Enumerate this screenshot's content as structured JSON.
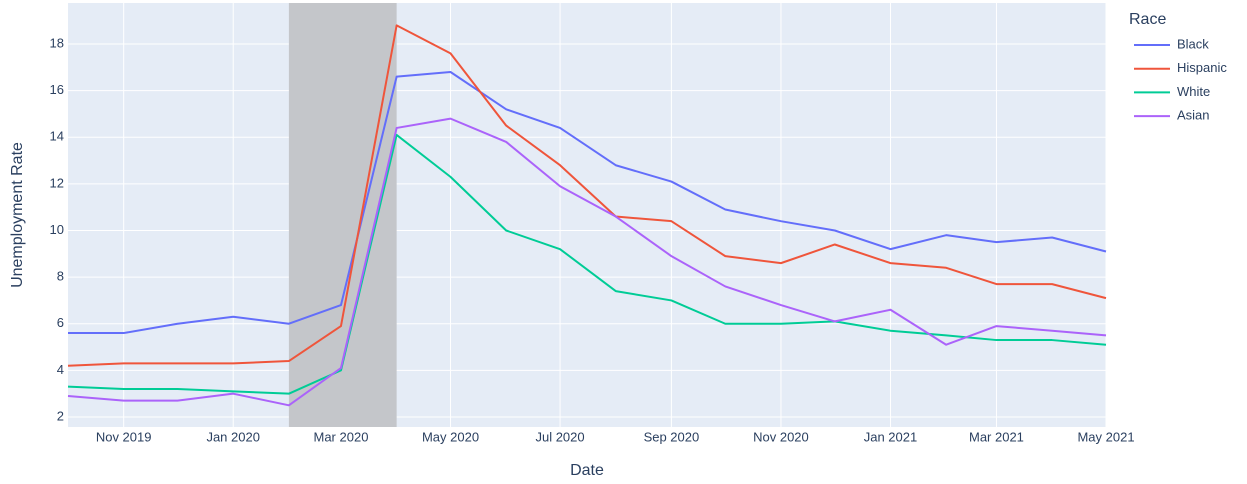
{
  "chart_data": {
    "type": "line",
    "x_label": "Date",
    "y_label": "Unemployment Rate",
    "legend_title": "Race",
    "legend_position": "right",
    "x": [
      "2019-10",
      "2019-11",
      "2019-12",
      "2020-01",
      "2020-02",
      "2020-03",
      "2020-04",
      "2020-05",
      "2020-06",
      "2020-07",
      "2020-08",
      "2020-09",
      "2020-10",
      "2020-11",
      "2020-12",
      "2021-01",
      "2021-02",
      "2021-03",
      "2021-04",
      "2021-05"
    ],
    "series": [
      {
        "name": "Black",
        "color": "#636efa",
        "values": [
          5.6,
          5.6,
          6.0,
          6.3,
          6.0,
          6.8,
          16.6,
          16.8,
          15.2,
          14.4,
          12.8,
          12.1,
          10.9,
          10.4,
          10.0,
          9.2,
          9.8,
          9.5,
          9.7,
          9.1
        ]
      },
      {
        "name": "Hispanic",
        "color": "#ef553b",
        "values": [
          4.2,
          4.3,
          4.3,
          4.3,
          4.4,
          5.9,
          18.8,
          17.6,
          14.5,
          12.8,
          10.6,
          10.4,
          8.9,
          8.6,
          9.4,
          8.6,
          8.4,
          7.7,
          7.7,
          7.1
        ]
      },
      {
        "name": "White",
        "color": "#00cc96",
        "values": [
          3.3,
          3.2,
          3.2,
          3.1,
          3.0,
          4.0,
          14.1,
          12.3,
          10.0,
          9.2,
          7.4,
          7.0,
          6.0,
          6.0,
          6.1,
          5.7,
          5.5,
          5.3,
          5.3,
          5.1
        ]
      },
      {
        "name": "Asian",
        "color": "#ab63fa",
        "values": [
          2.9,
          2.7,
          2.7,
          3.0,
          2.5,
          4.1,
          14.4,
          14.8,
          13.8,
          11.9,
          10.6,
          8.9,
          7.6,
          6.8,
          6.1,
          6.6,
          5.1,
          5.9,
          5.7,
          5.5
        ]
      }
    ],
    "xlim": [
      "2019-10",
      "2021-05"
    ],
    "xticks": [
      {
        "value": "2019-11",
        "label": "Nov 2019"
      },
      {
        "value": "2020-01",
        "label": "Jan 2020"
      },
      {
        "value": "2020-03",
        "label": "Mar 2020"
      },
      {
        "value": "2020-05",
        "label": "May 2020"
      },
      {
        "value": "2020-07",
        "label": "Jul 2020"
      },
      {
        "value": "2020-09",
        "label": "Sep 2020"
      },
      {
        "value": "2020-11",
        "label": "Nov 2020"
      },
      {
        "value": "2021-01",
        "label": "Jan 2021"
      },
      {
        "value": "2021-03",
        "label": "Mar 2021"
      },
      {
        "value": "2021-05",
        "label": "May 2021"
      }
    ],
    "ylim": [
      1.57,
      19.76
    ],
    "yticks": [
      2,
      4,
      6,
      8,
      10,
      12,
      14,
      16,
      18
    ],
    "grid": true,
    "shaded_regions": [
      {
        "start": "2020-02",
        "end": "2020-04",
        "color": "#c4c6ca"
      }
    ]
  }
}
